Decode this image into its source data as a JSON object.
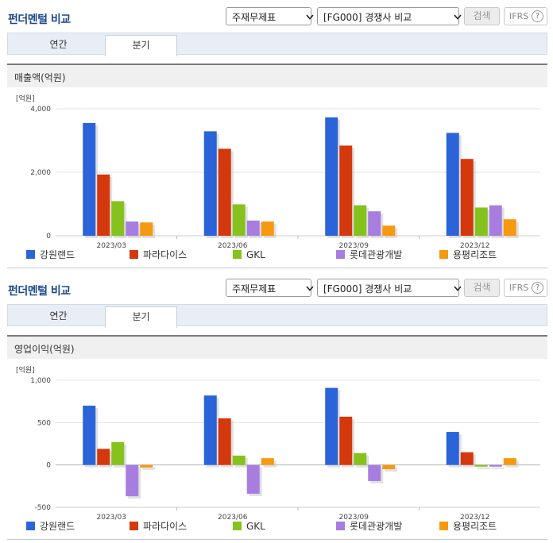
{
  "panels": [
    {
      "title": "펀더멘털 비교",
      "select_metric": "주재무제표",
      "select_compare": "[FG000] 경쟁사 비교",
      "search_label": "검색",
      "ifrs_label": "IFRS",
      "help_label": "?",
      "tabs": [
        "연간",
        "분기"
      ],
      "active_tab": 1,
      "chart_heading": "매출액(억원)"
    },
    {
      "title": "펀더멘털 비교",
      "select_metric": "주재무제표",
      "select_compare": "[FG000] 경쟁사 비교",
      "search_label": "검색",
      "ifrs_label": "IFRS",
      "help_label": "?",
      "tabs": [
        "연간",
        "분기"
      ],
      "active_tab": 1,
      "chart_heading": "영업이익(억원)"
    }
  ],
  "chart_data": [
    {
      "type": "bar",
      "unit_label": "[억원]",
      "categories": [
        "2023/03",
        "2023/06",
        "2023/09",
        "2023/12"
      ],
      "ylim": [
        0,
        4000
      ],
      "yticks": [
        0,
        2000,
        4000
      ],
      "ytick_labels": [
        "0",
        "2,000",
        "4,000"
      ],
      "grid": true,
      "legend_position": "bottom",
      "series": [
        {
          "name": "강원랜드",
          "color": "#2b63d9",
          "values": [
            3550,
            3290,
            3730,
            3240
          ]
        },
        {
          "name": "파라다이스",
          "color": "#d4380d",
          "values": [
            1930,
            2740,
            2840,
            2420
          ]
        },
        {
          "name": "GKL",
          "color": "#86c21d",
          "values": [
            1090,
            990,
            960,
            890
          ]
        },
        {
          "name": "롯데관광개발",
          "color": "#a77ee0",
          "values": [
            450,
            480,
            770,
            960
          ]
        },
        {
          "name": "용평리조트",
          "color": "#f59a10",
          "values": [
            420,
            450,
            320,
            520
          ]
        }
      ]
    },
    {
      "type": "bar",
      "unit_label": "[억원]",
      "categories": [
        "2023/03",
        "2023/06",
        "2023/09",
        "2023/12"
      ],
      "ylim": [
        -500,
        1000
      ],
      "yticks": [
        -500,
        0,
        500,
        1000
      ],
      "ytick_labels": [
        "-500",
        "0",
        "500",
        "1,000"
      ],
      "grid": true,
      "legend_position": "bottom",
      "series": [
        {
          "name": "강원랜드",
          "color": "#2b63d9",
          "values": [
            700,
            820,
            910,
            390
          ]
        },
        {
          "name": "파라다이스",
          "color": "#d4380d",
          "values": [
            190,
            550,
            570,
            150
          ]
        },
        {
          "name": "GKL",
          "color": "#86c21d",
          "values": [
            270,
            110,
            140,
            -20
          ]
        },
        {
          "name": "롯데관광개발",
          "color": "#a77ee0",
          "values": [
            -370,
            -340,
            -190,
            -20
          ]
        },
        {
          "name": "용평리조트",
          "color": "#f59a10",
          "values": [
            -30,
            80,
            -50,
            80
          ]
        }
      ]
    }
  ]
}
